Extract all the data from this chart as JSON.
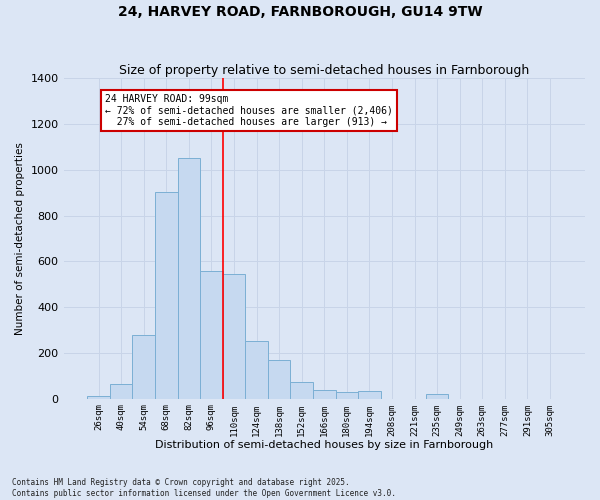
{
  "title": "24, HARVEY ROAD, FARNBOROUGH, GU14 9TW",
  "subtitle": "Size of property relative to semi-detached houses in Farnborough",
  "xlabel": "Distribution of semi-detached houses by size in Farnborough",
  "ylabel": "Number of semi-detached properties",
  "bins": [
    "26sqm",
    "40sqm",
    "54sqm",
    "68sqm",
    "82sqm",
    "96sqm",
    "110sqm",
    "124sqm",
    "138sqm",
    "152sqm",
    "166sqm",
    "180sqm",
    "194sqm",
    "208sqm",
    "221sqm",
    "235sqm",
    "249sqm",
    "263sqm",
    "277sqm",
    "291sqm",
    "305sqm"
  ],
  "counts": [
    10,
    65,
    280,
    905,
    1050,
    560,
    545,
    250,
    170,
    75,
    40,
    30,
    35,
    0,
    0,
    20,
    0,
    0,
    0,
    0,
    0
  ],
  "bar_color": "#c6d9f0",
  "bar_edge_color": "#7bafd4",
  "property_label": "24 HARVEY ROAD: 99sqm",
  "pct_smaller": 72,
  "n_smaller": 2406,
  "pct_larger": 27,
  "n_larger": 913,
  "annotation_box_color": "#ffffff",
  "annotation_box_edge": "#cc0000",
  "grid_color": "#c8d4e8",
  "background_color": "#dce6f5",
  "ylim": [
    0,
    1400
  ],
  "yticks": [
    0,
    200,
    400,
    600,
    800,
    1000,
    1200,
    1400
  ],
  "footer": "Contains HM Land Registry data © Crown copyright and database right 2025.\nContains public sector information licensed under the Open Government Licence v3.0.",
  "title_fontsize": 10,
  "subtitle_fontsize": 9
}
